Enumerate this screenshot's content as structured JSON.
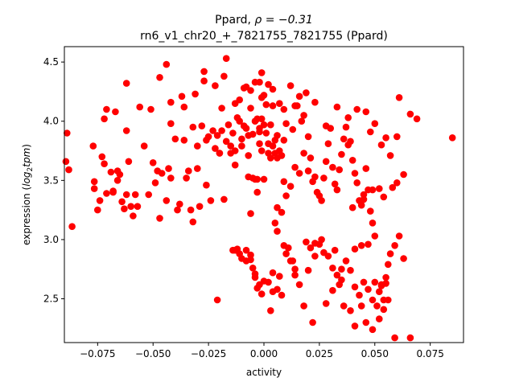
{
  "chart_data": {
    "type": "scatter",
    "title_line1_prefix": "Ppard, ",
    "title_line1_rho": "ρ = −0.31",
    "title_line2": "rn6_v1_chr20_+_7821755_7821755 (Ppard)",
    "xlabel": "activity",
    "ylabel_prefix": "expression (",
    "ylabel_math": "log",
    "ylabel_sub": "2",
    "ylabel_math2": "tpm",
    "ylabel_suffix": ")",
    "xlim": [
      -0.09,
      0.09
    ],
    "ylim": [
      2.13,
      4.63
    ],
    "xticks": [
      -0.075,
      -0.05,
      -0.025,
      0.0,
      0.025,
      0.05,
      0.075
    ],
    "xtick_labels": [
      "−0.075",
      "−0.050",
      "−0.025",
      "0.000",
      "0.025",
      "0.050",
      "0.075"
    ],
    "yticks": [
      2.5,
      3.0,
      3.5,
      4.0,
      4.5
    ],
    "ytick_labels": [
      "2.5",
      "3.0",
      "3.5",
      "4.0",
      "4.5"
    ],
    "color": "#ff0000",
    "grid": false,
    "points": [
      [
        -0.0888,
        3.9
      ],
      [
        -0.0893,
        3.66
      ],
      [
        -0.088,
        3.59
      ],
      [
        -0.0865,
        3.11
      ],
      [
        -0.077,
        3.79
      ],
      [
        -0.0765,
        3.49
      ],
      [
        -0.0765,
        3.43
      ],
      [
        -0.075,
        3.25
      ],
      [
        -0.074,
        3.33
      ],
      [
        -0.073,
        3.7
      ],
      [
        -0.072,
        3.64
      ],
      [
        -0.071,
        3.39
      ],
      [
        -0.072,
        4.02
      ],
      [
        -0.071,
        4.1
      ],
      [
        -0.069,
        3.57
      ],
      [
        -0.068,
        3.4
      ],
      [
        -0.068,
        3.41
      ],
      [
        -0.067,
        4.08
      ],
      [
        -0.066,
        3.58
      ],
      [
        -0.066,
        3.5
      ],
      [
        -0.065,
        3.55
      ],
      [
        -0.064,
        3.32
      ],
      [
        -0.063,
        3.26
      ],
      [
        -0.062,
        3.38
      ],
      [
        -0.062,
        3.92
      ],
      [
        -0.061,
        3.66
      ],
      [
        -0.062,
        4.32
      ],
      [
        -0.06,
        3.28
      ],
      [
        -0.059,
        3.2
      ],
      [
        -0.058,
        3.38
      ],
      [
        -0.057,
        3.28
      ],
      [
        -0.056,
        4.12
      ],
      [
        -0.054,
        3.79
      ],
      [
        -0.052,
        3.38
      ],
      [
        -0.051,
        4.1
      ],
      [
        -0.05,
        3.65
      ],
      [
        -0.049,
        3.48
      ],
      [
        -0.048,
        3.58
      ],
      [
        -0.047,
        3.18
      ],
      [
        -0.047,
        4.37
      ],
      [
        -0.046,
        3.56
      ],
      [
        -0.044,
        4.48
      ],
      [
        -0.044,
        3.33
      ],
      [
        -0.043,
        3.6
      ],
      [
        -0.042,
        3.52
      ],
      [
        -0.042,
        3.98
      ],
      [
        -0.042,
        4.16
      ],
      [
        -0.04,
        3.85
      ],
      [
        -0.039,
        3.25
      ],
      [
        -0.038,
        3.3
      ],
      [
        -0.037,
        4.21
      ],
      [
        -0.036,
        3.84
      ],
      [
        -0.036,
        4.12
      ],
      [
        -0.035,
        3.52
      ],
      [
        -0.034,
        3.58
      ],
      [
        -0.033,
        3.25
      ],
      [
        -0.032,
        3.15
      ],
      [
        -0.032,
        3.95
      ],
      [
        -0.031,
        4.23
      ],
      [
        -0.03,
        3.6
      ],
      [
        -0.03,
        3.79
      ],
      [
        -0.029,
        3.28
      ],
      [
        -0.028,
        3.96
      ],
      [
        -0.027,
        4.42
      ],
      [
        -0.027,
        4.34
      ],
      [
        -0.026,
        3.46
      ],
      [
        -0.026,
        3.84
      ],
      [
        -0.025,
        3.87
      ],
      [
        -0.024,
        3.33
      ],
      [
        -0.023,
        3.92
      ],
      [
        -0.022,
        3.77
      ],
      [
        -0.022,
        4.3
      ],
      [
        -0.021,
        3.88
      ],
      [
        -0.02,
        3.73
      ],
      [
        -0.02,
        3.73
      ],
      [
        -0.019,
        3.92
      ],
      [
        -0.019,
        4.11
      ],
      [
        -0.018,
        3.34
      ],
      [
        -0.018,
        4.38
      ],
      [
        -0.017,
        4.53
      ],
      [
        -0.017,
        3.83
      ],
      [
        -0.016,
        3.97
      ],
      [
        -0.015,
        3.73
      ],
      [
        -0.015,
        3.79
      ],
      [
        -0.014,
        3.9
      ],
      [
        -0.013,
        4.15
      ],
      [
        -0.013,
        3.75
      ],
      [
        -0.013,
        3.63
      ],
      [
        -0.012,
        4.03
      ],
      [
        -0.011,
        4.0
      ],
      [
        -0.011,
        4.18
      ],
      [
        -0.01,
        3.85
      ],
      [
        -0.01,
        3.79
      ],
      [
        -0.009,
        3.96
      ],
      [
        -0.009,
        4.28
      ],
      [
        -0.008,
        3.94
      ],
      [
        -0.008,
        4.29
      ],
      [
        -0.007,
        3.88
      ],
      [
        -0.007,
        3.71
      ],
      [
        -0.007,
        3.53
      ],
      [
        -0.006,
        3.22
      ],
      [
        -0.006,
        4.26
      ],
      [
        -0.006,
        4.11
      ],
      [
        -0.005,
        3.52
      ],
      [
        -0.005,
        3.89
      ],
      [
        -0.004,
        4.33
      ],
      [
        -0.004,
        3.51
      ],
      [
        -0.004,
        4.0
      ],
      [
        -0.003,
        3.4
      ],
      [
        -0.003,
        3.51
      ],
      [
        -0.003,
        4.02
      ],
      [
        -0.002,
        4.33
      ],
      [
        -0.002,
        3.91
      ],
      [
        -0.002,
        3.81
      ],
      [
        -0.002,
        3.94
      ],
      [
        -0.001,
        4.02
      ],
      [
        -0.001,
        4.2
      ],
      [
        -0.001,
        3.75
      ],
      [
        0.0,
        3.51
      ],
      [
        0.0,
        4.22
      ],
      [
        0.0,
        3.97
      ],
      [
        0.001,
        3.9
      ],
      [
        0.001,
        4.14
      ],
      [
        0.002,
        3.73
      ],
      [
        0.002,
        3.81
      ],
      [
        0.003,
        3.69
      ],
      [
        0.003,
        3.97
      ],
      [
        0.004,
        3.79
      ],
      [
        0.004,
        4.13
      ],
      [
        0.005,
        3.73
      ],
      [
        0.005,
        3.84
      ],
      [
        0.006,
        3.69
      ],
      [
        0.006,
        3.88
      ],
      [
        0.006,
        3.27
      ],
      [
        0.007,
        3.75
      ],
      [
        0.008,
        3.71
      ],
      [
        0.009,
        4.1
      ],
      [
        0.009,
        3.84
      ],
      [
        0.009,
        3.49
      ],
      [
        -0.021,
        2.49
      ],
      [
        -0.014,
        2.91
      ],
      [
        -0.012,
        2.92
      ],
      [
        -0.01,
        2.84
      ],
      [
        -0.008,
        2.82
      ],
      [
        -0.006,
        2.87
      ],
      [
        -0.005,
        2.76
      ],
      [
        -0.004,
        2.68
      ],
      [
        -0.004,
        2.71
      ],
      [
        -0.003,
        2.59
      ],
      [
        -0.002,
        2.62
      ],
      [
        -0.001,
        2.54
      ],
      [
        0.0,
        2.65
      ],
      [
        0.002,
        2.64
      ],
      [
        0.004,
        2.72
      ],
      [
        0.006,
        2.58
      ],
      [
        0.008,
        2.53
      ],
      [
        0.01,
        2.88
      ],
      [
        0.012,
        2.82
      ],
      [
        0.014,
        2.7
      ],
      [
        0.005,
        3.14
      ],
      [
        0.006,
        3.07
      ],
      [
        0.008,
        3.23
      ],
      [
        0.01,
        3.37
      ],
      [
        0.012,
        3.45
      ],
      [
        0.014,
        3.61
      ],
      [
        0.016,
        3.56
      ],
      [
        0.018,
        3.73
      ],
      [
        0.02,
        3.58
      ],
      [
        0.012,
        4.3
      ],
      [
        0.014,
        4.13
      ],
      [
        0.016,
        4.21
      ],
      [
        0.017,
        4.0
      ],
      [
        0.019,
        4.24
      ],
      [
        0.02,
        3.87
      ],
      [
        0.021,
        3.69
      ],
      [
        0.022,
        3.49
      ],
      [
        0.023,
        3.53
      ],
      [
        0.024,
        3.4
      ],
      [
        0.025,
        3.37
      ],
      [
        0.026,
        3.33
      ],
      [
        0.027,
        3.52
      ],
      [
        0.028,
        3.66
      ],
      [
        0.029,
        3.81
      ],
      [
        0.03,
        3.94
      ],
      [
        0.031,
        3.61
      ],
      [
        0.032,
        3.47
      ],
      [
        0.033,
        3.42
      ],
      [
        0.034,
        3.59
      ],
      [
        0.035,
        3.72
      ],
      [
        0.036,
        3.85
      ],
      [
        0.037,
        3.95
      ],
      [
        0.038,
        4.03
      ],
      [
        0.039,
        3.83
      ],
      [
        0.04,
        3.67
      ],
      [
        0.041,
        3.56
      ],
      [
        0.042,
        3.48
      ],
      [
        0.043,
        3.33
      ],
      [
        0.044,
        3.29
      ],
      [
        0.045,
        3.38
      ],
      [
        0.046,
        3.6
      ],
      [
        0.047,
        3.42
      ],
      [
        0.048,
        3.24
      ],
      [
        0.049,
        3.14
      ],
      [
        0.05,
        3.03
      ],
      [
        0.018,
        4.05
      ],
      [
        0.023,
        4.16
      ],
      [
        0.028,
        3.96
      ],
      [
        0.033,
        4.12
      ],
      [
        0.038,
        3.8
      ],
      [
        0.042,
        4.1
      ],
      [
        0.046,
        4.08
      ],
      [
        0.048,
        3.91
      ],
      [
        0.05,
        3.98
      ],
      [
        0.053,
        3.8
      ],
      [
        0.055,
        3.86
      ],
      [
        0.057,
        3.71
      ],
      [
        0.06,
        3.87
      ],
      [
        0.061,
        4.2
      ],
      [
        0.066,
        4.06
      ],
      [
        0.069,
        4.02
      ],
      [
        0.085,
        3.86
      ],
      [
        0.063,
        3.55
      ],
      [
        0.06,
        3.48
      ],
      [
        0.049,
        3.42
      ],
      [
        0.052,
        3.43
      ],
      [
        0.058,
        3.44
      ],
      [
        0.054,
        3.36
      ],
      [
        0.045,
        3.34
      ],
      [
        0.04,
        3.27
      ],
      [
        0.015,
        4.13
      ],
      [
        0.007,
        4.15
      ],
      [
        0.004,
        4.27
      ],
      [
        0.002,
        4.31
      ],
      [
        -0.001,
        4.41
      ],
      [
        0.01,
        3.98
      ],
      [
        0.013,
        3.93
      ],
      [
        0.019,
        2.98
      ],
      [
        0.021,
        2.93
      ],
      [
        0.023,
        2.86
      ],
      [
        0.025,
        2.96
      ],
      [
        0.027,
        2.89
      ],
      [
        0.029,
        2.86
      ],
      [
        0.031,
        2.76
      ],
      [
        0.033,
        2.7
      ],
      [
        0.035,
        2.66
      ],
      [
        0.037,
        2.82
      ],
      [
        0.039,
        2.74
      ],
      [
        0.041,
        2.6
      ],
      [
        0.043,
        2.53
      ],
      [
        0.045,
        2.64
      ],
      [
        0.047,
        2.58
      ],
      [
        0.049,
        2.49
      ],
      [
        0.051,
        2.44
      ],
      [
        0.053,
        2.62
      ],
      [
        0.055,
        2.68
      ],
      [
        0.057,
        2.88
      ],
      [
        0.059,
        2.95
      ],
      [
        0.061,
        3.03
      ],
      [
        0.063,
        2.84
      ],
      [
        0.028,
        2.46
      ],
      [
        0.031,
        2.57
      ],
      [
        0.034,
        2.62
      ],
      [
        0.036,
        2.44
      ],
      [
        0.039,
        2.4
      ],
      [
        0.041,
        2.27
      ],
      [
        0.044,
        2.44
      ],
      [
        0.046,
        2.3
      ],
      [
        0.049,
        2.24
      ],
      [
        0.052,
        2.33
      ],
      [
        0.054,
        2.41
      ],
      [
        0.056,
        2.49
      ],
      [
        0.059,
        2.17
      ],
      [
        0.066,
        2.17
      ],
      [
        0.022,
        2.3
      ],
      [
        0.018,
        2.44
      ],
      [
        0.016,
        2.62
      ],
      [
        0.014,
        2.75
      ],
      [
        0.013,
        2.82
      ],
      [
        0.011,
        2.93
      ],
      [
        0.009,
        2.95
      ],
      [
        0.007,
        2.69
      ],
      [
        0.004,
        2.56
      ],
      [
        0.003,
        2.4
      ],
      [
        -0.006,
        2.83
      ],
      [
        -0.008,
        2.91
      ],
      [
        -0.011,
        2.88
      ],
      [
        -0.013,
        2.91
      ],
      [
        0.02,
        2.74
      ],
      [
        0.023,
        2.97
      ],
      [
        0.026,
        3.0
      ],
      [
        0.032,
        2.91
      ],
      [
        0.035,
        2.75
      ],
      [
        0.041,
        2.92
      ],
      [
        0.044,
        2.95
      ],
      [
        0.047,
        2.96
      ],
      [
        0.05,
        2.64
      ],
      [
        0.052,
        2.56
      ],
      [
        0.053,
        2.61
      ],
      [
        0.054,
        2.49
      ],
      [
        0.055,
        2.63
      ],
      [
        0.056,
        2.79
      ]
    ]
  }
}
